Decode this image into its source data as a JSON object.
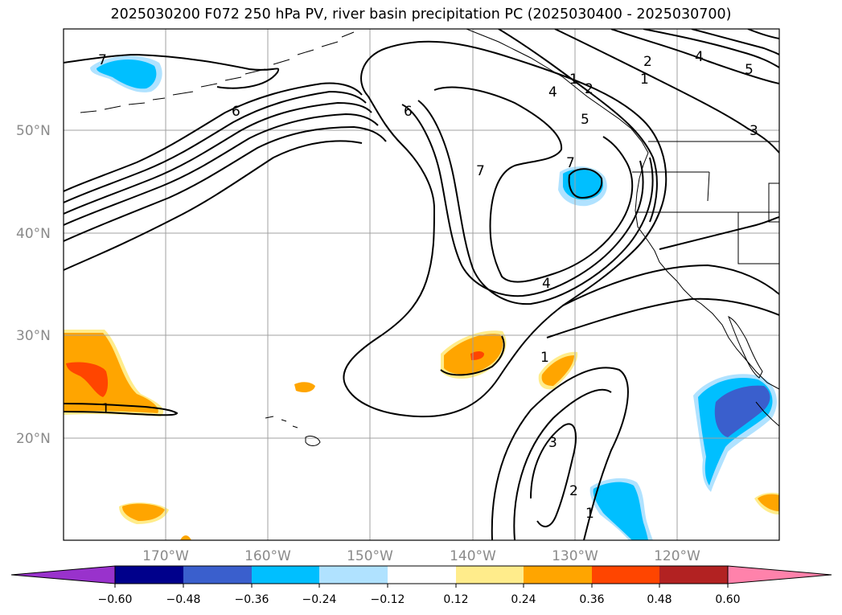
{
  "title": "2025030200 F072 250 hPa PV, river basin precipitation PC (2025030400 - 2025030700)",
  "map": {
    "lat_labels": [
      "50°N",
      "40°N",
      "30°N",
      "20°N"
    ],
    "lon_labels": [
      "170°W",
      "160°W",
      "150°W",
      "140°W",
      "130°W",
      "120°W"
    ],
    "grid_color": "#a0a0a0",
    "contour_color": "#000000",
    "contour_labels": [
      "7",
      "6",
      "6",
      "7",
      "7",
      "4",
      "2",
      "1",
      "4",
      "5",
      "3",
      "2",
      "1",
      "5",
      "4",
      "1",
      "3",
      "2",
      "1",
      "1"
    ]
  },
  "colorbar": {
    "ticks": [
      "−0.60",
      "−0.48",
      "−0.36",
      "−0.24",
      "−0.12",
      "0.12",
      "0.24",
      "0.36",
      "0.48",
      "0.60"
    ],
    "colors": [
      "#9932cc",
      "#00008b",
      "#3a5fcd",
      "#00bfff",
      "#b0e2ff",
      "#ffffff",
      "#ffec8b",
      "#ffa500",
      "#ff4500",
      "#b22222",
      "#ff82ab"
    ]
  }
}
